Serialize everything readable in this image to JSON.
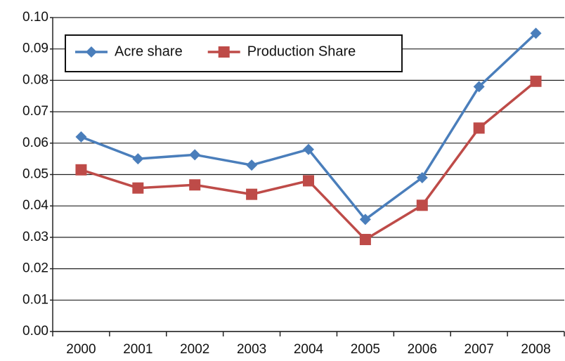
{
  "chart_data": {
    "type": "line",
    "categories": [
      "2000",
      "2001",
      "2002",
      "2003",
      "2004",
      "2005",
      "2006",
      "2007",
      "2008"
    ],
    "series": [
      {
        "name": "Acre share",
        "color": "#4a7ebb",
        "marker": "diamond",
        "values": [
          0.062,
          0.055,
          0.0563,
          0.053,
          0.058,
          0.0357,
          0.049,
          0.078,
          0.095
        ]
      },
      {
        "name": "Production Share",
        "color": "#be4b48",
        "marker": "square",
        "values": [
          0.0515,
          0.0457,
          0.0467,
          0.0437,
          0.048,
          0.0293,
          0.0402,
          0.0648,
          0.0797
        ]
      }
    ],
    "ylim": [
      0,
      0.1
    ],
    "yticks": [
      {
        "value": 0,
        "label": "0.00"
      },
      0.01,
      0.02,
      0.03,
      0.04,
      0.05,
      0.06,
      0.07,
      0.08,
      0.09,
      {
        "value": 0.1,
        "label": "0.10"
      }
    ],
    "grid": true,
    "legend": "top-left"
  }
}
